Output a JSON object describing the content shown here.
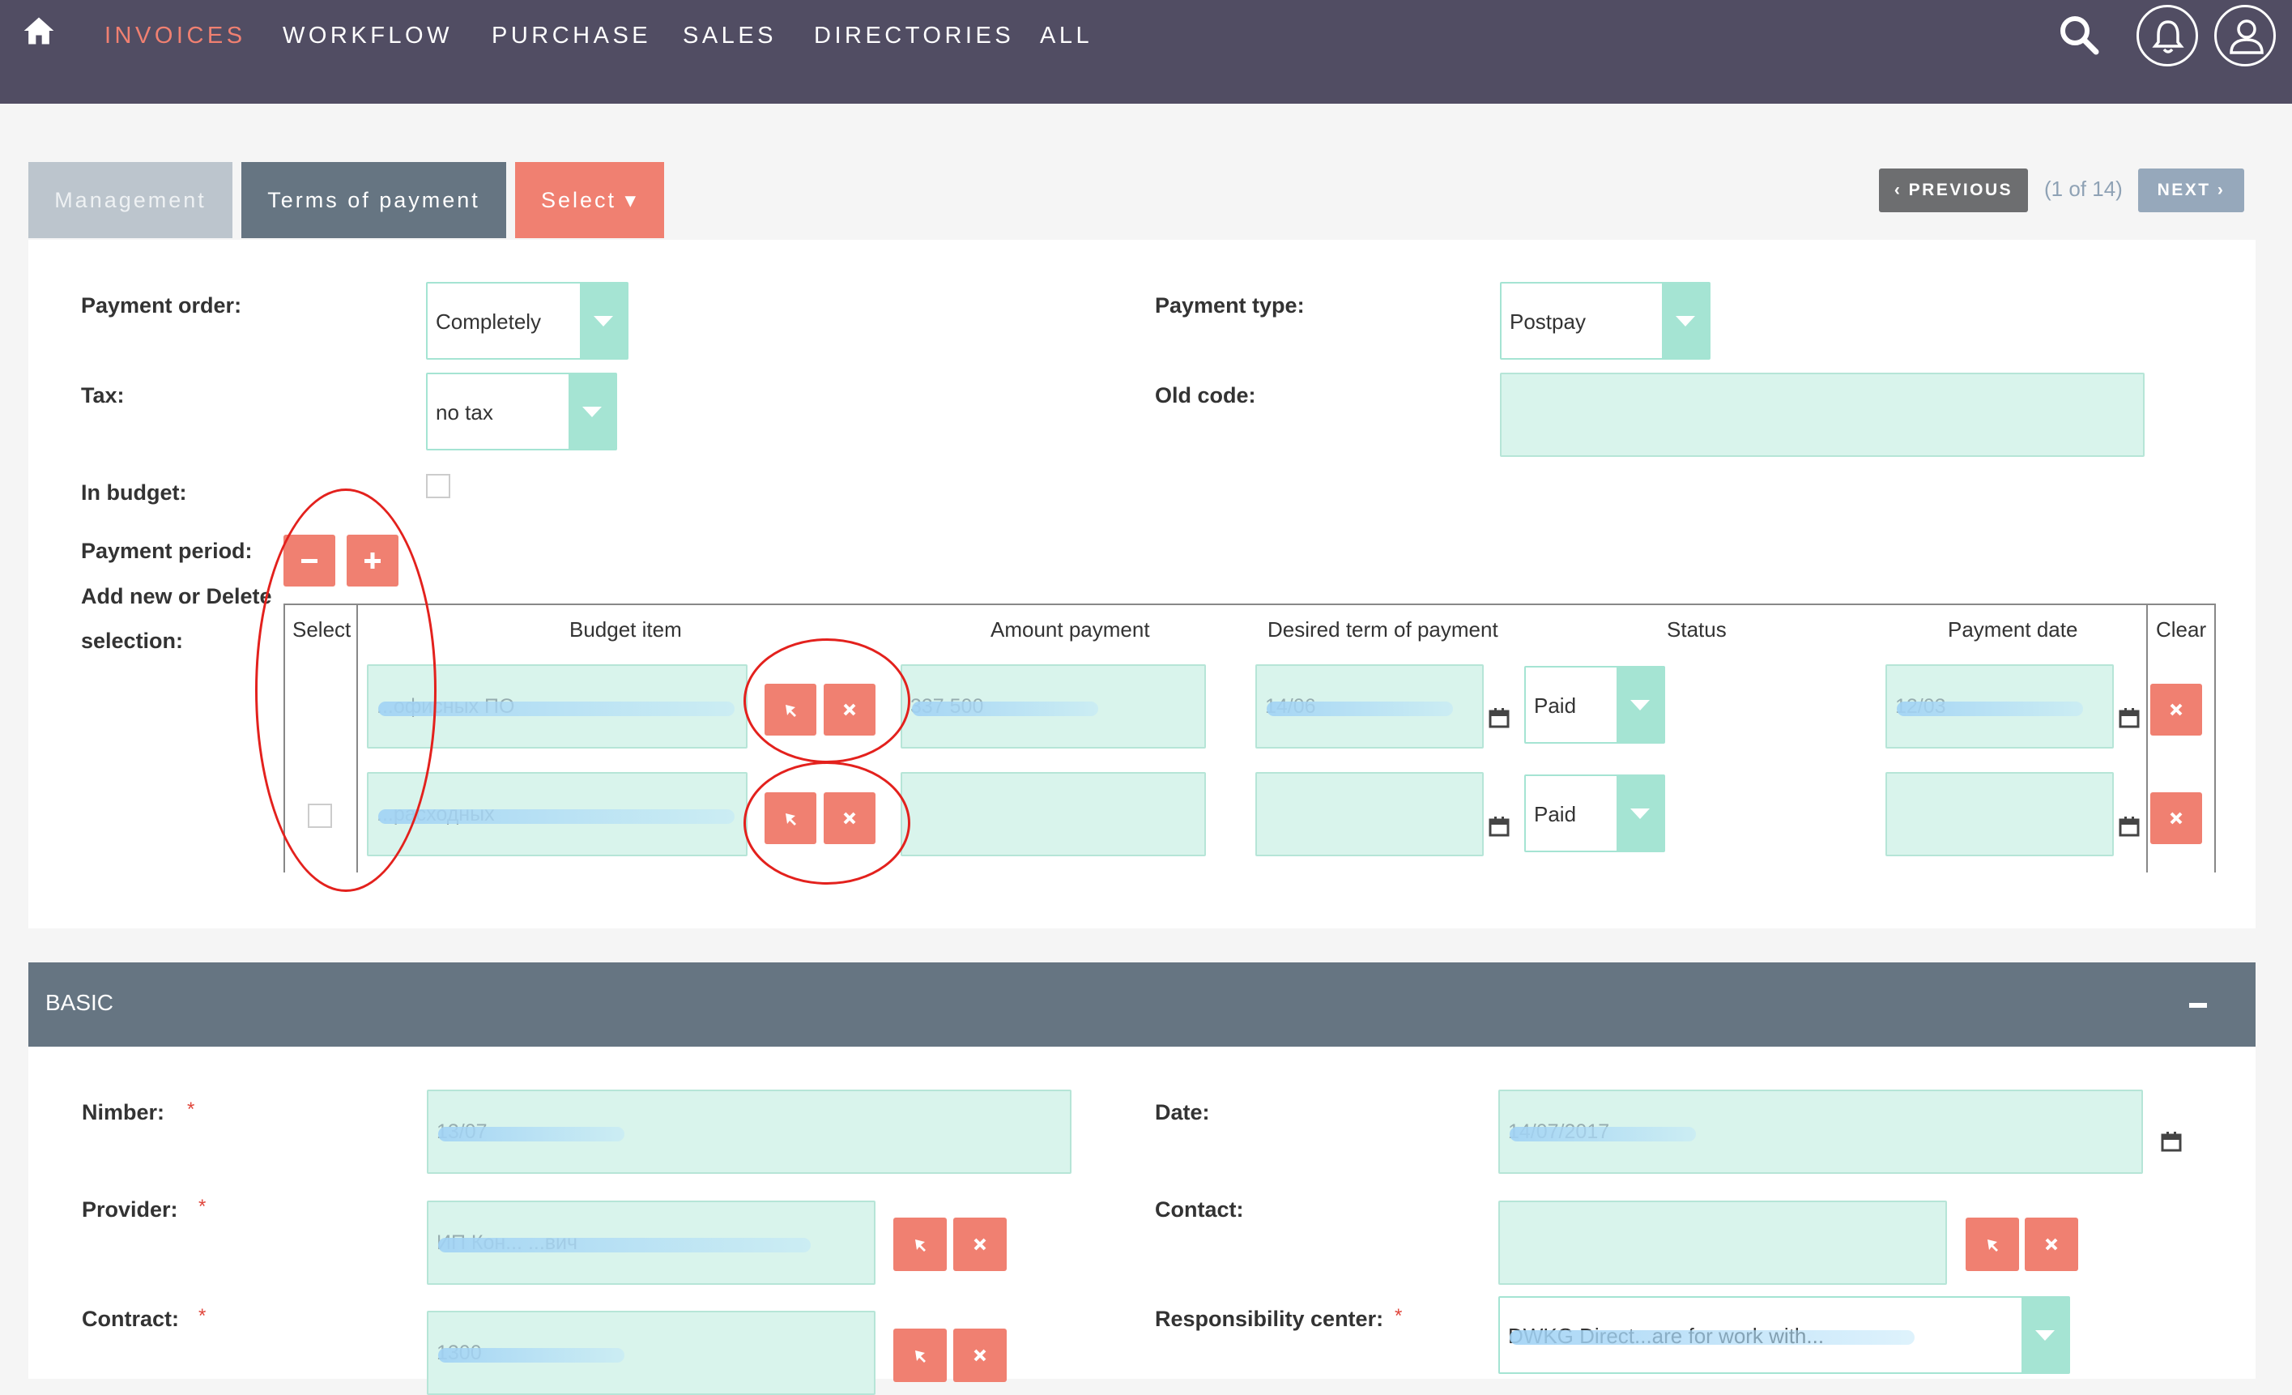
{
  "nav": {
    "items": [
      "INVOICES",
      "WORKFLOW",
      "PURCHASE",
      "SALES",
      "DIRECTORIES",
      "ALL"
    ]
  },
  "tabs": {
    "management": "Management",
    "terms": "Terms of payment",
    "select": "Select ▾"
  },
  "pager": {
    "previous": "PREVIOUS",
    "count": "(1 of 14)",
    "next": "NEXT"
  },
  "form": {
    "payment_order_label": "Payment order:",
    "payment_order_value": "Completely",
    "payment_type_label": "Payment type:",
    "payment_type_value": "Postpay",
    "tax_label": "Tax:",
    "tax_value": "no tax",
    "old_code_label": "Old code:",
    "in_budget_label": "In budget:",
    "payment_period_label": "Payment period:",
    "add_delete_label": "Add new or Delete",
    "selection_label": "selection:"
  },
  "table": {
    "headers": [
      "Select",
      "Budget item",
      "Amount payment",
      "Desired term of payment",
      "Status",
      "Payment date",
      "Clear"
    ],
    "rows": [
      {
        "budget_item": "...офисных ПО",
        "amount": "337 500",
        "desired_term": "14/06",
        "status": "Paid",
        "payment_date": "12/03"
      },
      {
        "budget_item": "...расходных",
        "amount": "",
        "desired_term": "",
        "status": "Paid",
        "payment_date": ""
      }
    ]
  },
  "basic": {
    "title": "BASIC",
    "number_label": "Nimber:",
    "number_value": "13/07",
    "date_label": "Date:",
    "date_value": "14/07/2017",
    "provider_label": "Provider:",
    "provider_value": "ИП Кон... ...вич",
    "contact_label": "Contact:",
    "contract_label": "Contract:",
    "contract_value": "1300",
    "responsibility_label": "Responsibility center:",
    "responsibility_value": "DWKG Direct...are for work with..."
  },
  "colors": {
    "topbar": "#514d63",
    "accent": "#f08071",
    "field": "#d9f4ec",
    "tab_active": "#667582"
  }
}
